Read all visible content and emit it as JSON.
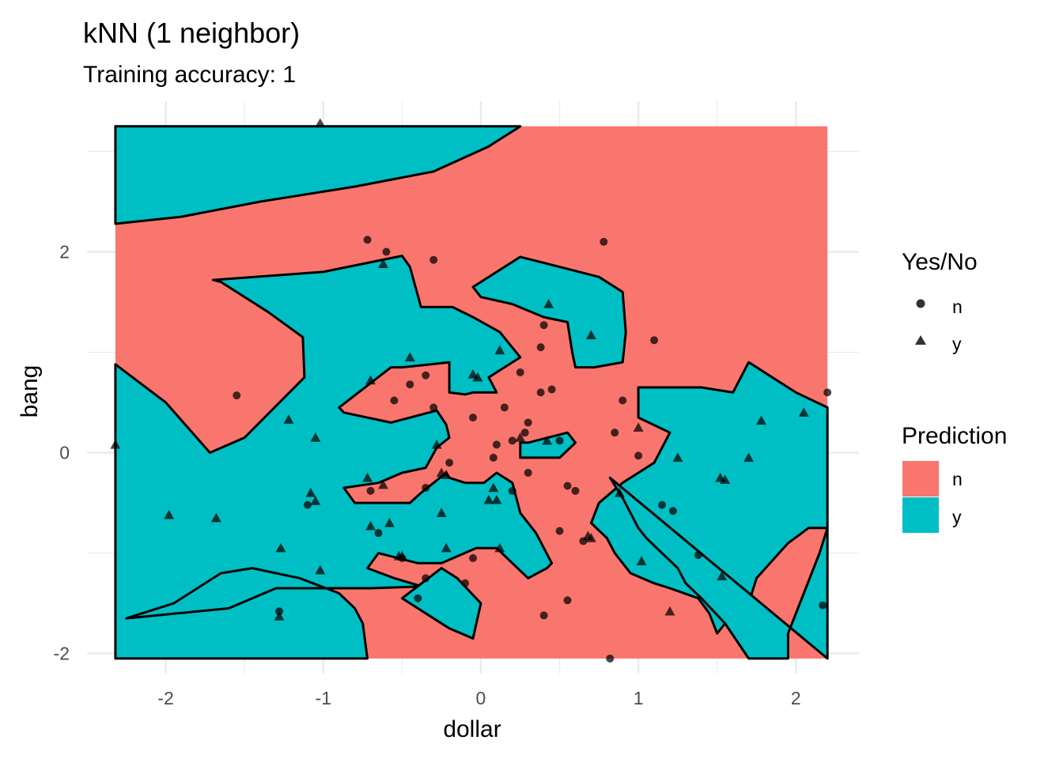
{
  "chart_data": {
    "type": "scatter",
    "title": "kNN (1 neighbor)",
    "subtitle": "Training accuracy: 1",
    "xlabel": "dollar",
    "ylabel": "bang",
    "xlim": [
      -2.5,
      2.4
    ],
    "ylim": [
      -2.2,
      3.5
    ],
    "x_ticks": [
      -2,
      -1,
      0,
      1,
      2
    ],
    "y_ticks": [
      -2,
      0,
      2
    ],
    "x_tick_labels": [
      "-2",
      "-1",
      "0",
      "1",
      "2"
    ],
    "y_tick_labels": [
      "-2",
      "0",
      "2"
    ],
    "grid": true,
    "legend_placement": "right",
    "region_extent": {
      "x": [
        -2.32,
        2.2
      ],
      "y": [
        -2.05,
        3.25
      ]
    },
    "colors": {
      "n": "#F8766D",
      "y": "#00BFC4",
      "grid": "#ebebeb",
      "points": "#000000"
    },
    "legends": [
      {
        "title": "Yes/No",
        "items": [
          {
            "label": "n",
            "shape": "circle"
          },
          {
            "label": "y",
            "shape": "triangle"
          }
        ]
      },
      {
        "title": "Prediction",
        "items": [
          {
            "label": "n",
            "key": "n"
          },
          {
            "label": "y",
            "key": "y"
          }
        ]
      }
    ],
    "regions": [
      {
        "class": "y",
        "points": [
          [
            -2.32,
            3.25
          ],
          [
            0.25,
            3.25
          ],
          [
            0.15,
            3.15
          ],
          [
            0.05,
            3.05
          ],
          [
            -0.3,
            2.8
          ],
          [
            -0.8,
            2.65
          ],
          [
            -1.4,
            2.5
          ],
          [
            -1.9,
            2.35
          ],
          [
            -2.32,
            2.28
          ]
        ]
      },
      {
        "class": "y",
        "points": [
          [
            -2.32,
            0.88
          ],
          [
            -2.0,
            0.5
          ],
          [
            -1.72,
            0.0
          ],
          [
            -1.5,
            0.15
          ],
          [
            -1.12,
            0.75
          ],
          [
            -1.13,
            1.15
          ],
          [
            -1.35,
            1.4
          ],
          [
            -1.65,
            1.7
          ],
          [
            -1.7,
            1.72
          ],
          [
            -1.0,
            1.8
          ],
          [
            -0.5,
            1.96
          ],
          [
            -0.45,
            1.85
          ],
          [
            -0.38,
            1.45
          ],
          [
            -0.18,
            1.45
          ],
          [
            -0.05,
            1.35
          ],
          [
            0.12,
            1.2
          ],
          [
            0.25,
            0.95
          ],
          [
            0.15,
            0.85
          ],
          [
            0.05,
            0.75
          ],
          [
            0.1,
            0.6
          ],
          [
            -0.05,
            0.6
          ],
          [
            -0.1,
            0.58
          ],
          [
            -0.2,
            0.6
          ],
          [
            -0.2,
            0.9
          ],
          [
            -0.5,
            0.85
          ],
          [
            -0.57,
            0.85
          ],
          [
            -0.9,
            0.45
          ],
          [
            -0.87,
            0.4
          ],
          [
            -0.57,
            0.3
          ],
          [
            -0.28,
            0.42
          ],
          [
            -0.22,
            0.28
          ],
          [
            -0.2,
            0.15
          ],
          [
            -0.28,
            0.05
          ],
          [
            -0.35,
            -0.15
          ],
          [
            -0.5,
            -0.2
          ],
          [
            -0.65,
            -0.3
          ],
          [
            -0.87,
            -0.35
          ],
          [
            -0.8,
            -0.5
          ],
          [
            -0.45,
            -0.5
          ],
          [
            -0.38,
            -0.4
          ],
          [
            -0.22,
            -0.2
          ],
          [
            -0.2,
            -0.25
          ],
          [
            -0.1,
            -0.3
          ],
          [
            0.02,
            -0.3
          ],
          [
            0.1,
            -0.2
          ],
          [
            0.2,
            -0.3
          ],
          [
            0.25,
            -0.6
          ],
          [
            0.35,
            -0.8
          ],
          [
            0.45,
            -1.1
          ],
          [
            0.42,
            -1.15
          ],
          [
            0.3,
            -1.25
          ],
          [
            0.2,
            -1.1
          ],
          [
            0.1,
            -0.95
          ],
          [
            -0.03,
            -0.95
          ],
          [
            -0.25,
            -1.1
          ],
          [
            -0.4,
            -1.1
          ],
          [
            -0.65,
            -1.0
          ],
          [
            -0.72,
            -1.15
          ],
          [
            -0.55,
            -1.25
          ],
          [
            -0.4,
            -1.32
          ],
          [
            -0.15,
            -1.32
          ],
          [
            -0.7,
            -1.35
          ],
          [
            -1.3,
            -1.35
          ],
          [
            -1.6,
            -1.55
          ],
          [
            -2.25,
            -1.65
          ],
          [
            -1.95,
            -1.5
          ],
          [
            -1.65,
            -1.2
          ],
          [
            -1.45,
            -1.15
          ],
          [
            -1.15,
            -1.25
          ],
          [
            -0.9,
            -1.4
          ],
          [
            -0.8,
            -1.55
          ],
          [
            -0.75,
            -1.7
          ],
          [
            -0.72,
            -2.05
          ],
          [
            -2.32,
            -2.05
          ]
        ]
      },
      {
        "class": "y",
        "points": [
          [
            -0.05,
            1.65
          ],
          [
            0.25,
            1.95
          ],
          [
            0.5,
            1.85
          ],
          [
            0.75,
            1.75
          ],
          [
            0.9,
            1.6
          ],
          [
            0.92,
            1.2
          ],
          [
            0.9,
            0.9
          ],
          [
            0.72,
            0.85
          ],
          [
            0.6,
            0.85
          ],
          [
            0.58,
            1.0
          ],
          [
            0.55,
            1.3
          ],
          [
            0.4,
            1.35
          ],
          [
            0.2,
            1.48
          ],
          [
            0.0,
            1.55
          ]
        ]
      },
      {
        "class": "y",
        "points": [
          [
            1.0,
            0.65
          ],
          [
            1.4,
            0.65
          ],
          [
            1.6,
            0.6
          ],
          [
            1.7,
            0.9
          ],
          [
            1.85,
            0.75
          ],
          [
            2.0,
            0.6
          ],
          [
            2.2,
            0.45
          ],
          [
            2.2,
            -0.75
          ],
          [
            2.08,
            -0.75
          ],
          [
            1.95,
            -0.9
          ],
          [
            1.75,
            -1.25
          ],
          [
            1.7,
            -1.5
          ],
          [
            1.55,
            -1.45
          ],
          [
            1.6,
            -1.6
          ],
          [
            1.5,
            -1.8
          ],
          [
            1.45,
            -1.6
          ],
          [
            1.38,
            -1.45
          ],
          [
            1.2,
            -1.35
          ],
          [
            1.1,
            -1.3
          ],
          [
            0.95,
            -1.2
          ],
          [
            0.85,
            -1.0
          ],
          [
            0.8,
            -0.85
          ],
          [
            0.7,
            -0.7
          ],
          [
            0.75,
            -0.5
          ],
          [
            0.9,
            -0.3
          ],
          [
            1.0,
            -0.2
          ],
          [
            1.1,
            -0.1
          ],
          [
            1.2,
            0.2
          ],
          [
            1.0,
            0.35
          ]
        ]
      },
      {
        "class": "y",
        "points": [
          [
            0.82,
            -0.25
          ],
          [
            0.9,
            -0.45
          ],
          [
            0.95,
            -0.6
          ],
          [
            1.0,
            -0.75
          ],
          [
            1.05,
            -0.85
          ],
          [
            1.15,
            -1.0
          ],
          [
            1.25,
            -1.15
          ],
          [
            1.3,
            -1.3
          ],
          [
            1.4,
            -1.45
          ],
          [
            1.55,
            -1.7
          ],
          [
            1.7,
            -2.05
          ],
          [
            1.95,
            -2.05
          ],
          [
            1.95,
            -1.8
          ],
          [
            2.05,
            -1.4
          ],
          [
            2.15,
            -1.0
          ],
          [
            2.2,
            -0.75
          ],
          [
            2.2,
            -2.05
          ]
        ]
      },
      {
        "class": "y",
        "points": [
          [
            0.25,
            0.1
          ],
          [
            0.3,
            0.1
          ],
          [
            0.55,
            0.2
          ],
          [
            0.6,
            0.1
          ],
          [
            0.5,
            -0.05
          ],
          [
            0.35,
            -0.05
          ],
          [
            0.25,
            -0.05
          ]
        ]
      },
      {
        "class": "y",
        "points": [
          [
            -0.5,
            -1.45
          ],
          [
            -0.25,
            -1.15
          ],
          [
            -0.15,
            -1.25
          ],
          [
            0.0,
            -1.5
          ],
          [
            -0.05,
            -1.85
          ],
          [
            -0.2,
            -1.75
          ]
        ]
      }
    ],
    "series": [
      {
        "name": "n",
        "shape": "circle",
        "points": [
          [
            -1.55,
            0.57
          ],
          [
            -0.72,
            2.12
          ],
          [
            -0.6,
            2.0
          ],
          [
            -0.3,
            1.92
          ],
          [
            0.78,
            2.1
          ],
          [
            1.1,
            1.12
          ],
          [
            0.4,
            1.27
          ],
          [
            0.38,
            1.05
          ],
          [
            0.25,
            0.8
          ],
          [
            0.45,
            0.63
          ],
          [
            0.38,
            0.6
          ],
          [
            0.9,
            0.52
          ],
          [
            2.2,
            0.6
          ],
          [
            -0.55,
            0.52
          ],
          [
            -0.45,
            0.68
          ],
          [
            -0.35,
            0.77
          ],
          [
            -0.3,
            0.45
          ],
          [
            -0.05,
            0.35
          ],
          [
            0.15,
            0.45
          ],
          [
            0.3,
            0.3
          ],
          [
            0.28,
            0.2
          ],
          [
            0.1,
            0.08
          ],
          [
            0.08,
            -0.05
          ],
          [
            0.2,
            0.12
          ],
          [
            0.5,
            0.12
          ],
          [
            0.85,
            0.2
          ],
          [
            1.0,
            -0.03
          ],
          [
            0.3,
            -0.2
          ],
          [
            0.2,
            -0.38
          ],
          [
            0.55,
            -0.33
          ],
          [
            0.6,
            -0.38
          ],
          [
            -0.2,
            -0.1
          ],
          [
            -0.35,
            -0.35
          ],
          [
            -1.1,
            -0.52
          ],
          [
            -0.7,
            -0.38
          ],
          [
            -0.65,
            -0.8
          ],
          [
            -0.5,
            -1.05
          ],
          [
            -0.35,
            -1.25
          ],
          [
            -0.05,
            -1.05
          ],
          [
            -0.1,
            -1.3
          ],
          [
            0.5,
            -0.78
          ],
          [
            0.65,
            -0.88
          ],
          [
            1.15,
            -0.52
          ],
          [
            1.22,
            -0.58
          ],
          [
            1.38,
            -1.02
          ],
          [
            0.55,
            -1.47
          ],
          [
            0.4,
            -1.62
          ],
          [
            -0.4,
            -1.45
          ],
          [
            -1.28,
            -1.58
          ],
          [
            0.82,
            -2.05
          ],
          [
            2.17,
            -1.52
          ]
        ]
      },
      {
        "name": "y",
        "shape": "triangle",
        "points": [
          [
            -1.02,
            3.28
          ],
          [
            -0.62,
            1.88
          ],
          [
            0.43,
            1.48
          ],
          [
            0.7,
            1.17
          ],
          [
            0.12,
            1.02
          ],
          [
            -0.45,
            0.95
          ],
          [
            -0.7,
            0.72
          ],
          [
            -0.05,
            0.78
          ],
          [
            -0.02,
            0.75
          ],
          [
            -1.22,
            0.33
          ],
          [
            -1.05,
            0.15
          ],
          [
            -2.32,
            0.08
          ],
          [
            -0.28,
            0.08
          ],
          [
            0.25,
            0.15
          ],
          [
            0.42,
            0.12
          ],
          [
            1.0,
            0.25
          ],
          [
            1.25,
            -0.05
          ],
          [
            1.7,
            -0.05
          ],
          [
            1.78,
            0.32
          ],
          [
            2.05,
            0.4
          ],
          [
            1.52,
            -0.25
          ],
          [
            1.55,
            -0.27
          ],
          [
            -0.25,
            -0.2
          ],
          [
            -0.22,
            -0.22
          ],
          [
            -0.72,
            -0.25
          ],
          [
            -0.62,
            -0.32
          ],
          [
            0.08,
            -0.35
          ],
          [
            0.1,
            -0.47
          ],
          [
            0.05,
            -0.47
          ],
          [
            -1.08,
            -0.4
          ],
          [
            -1.05,
            -0.48
          ],
          [
            -0.25,
            -0.6
          ],
          [
            -1.98,
            -0.62
          ],
          [
            -1.68,
            -0.65
          ],
          [
            -0.7,
            -0.73
          ],
          [
            -0.58,
            -0.7
          ],
          [
            0.88,
            -0.4
          ],
          [
            0.68,
            -0.83
          ],
          [
            0.7,
            -0.85
          ],
          [
            -1.27,
            -0.95
          ],
          [
            -1.02,
            -1.17
          ],
          [
            -0.52,
            -1.03
          ],
          [
            -0.5,
            -1.03
          ],
          [
            -0.22,
            -0.95
          ],
          [
            0.12,
            -0.95
          ],
          [
            1.02,
            -1.08
          ],
          [
            1.53,
            -1.23
          ],
          [
            1.2,
            -1.58
          ],
          [
            -1.28,
            -1.63
          ]
        ]
      }
    ]
  }
}
